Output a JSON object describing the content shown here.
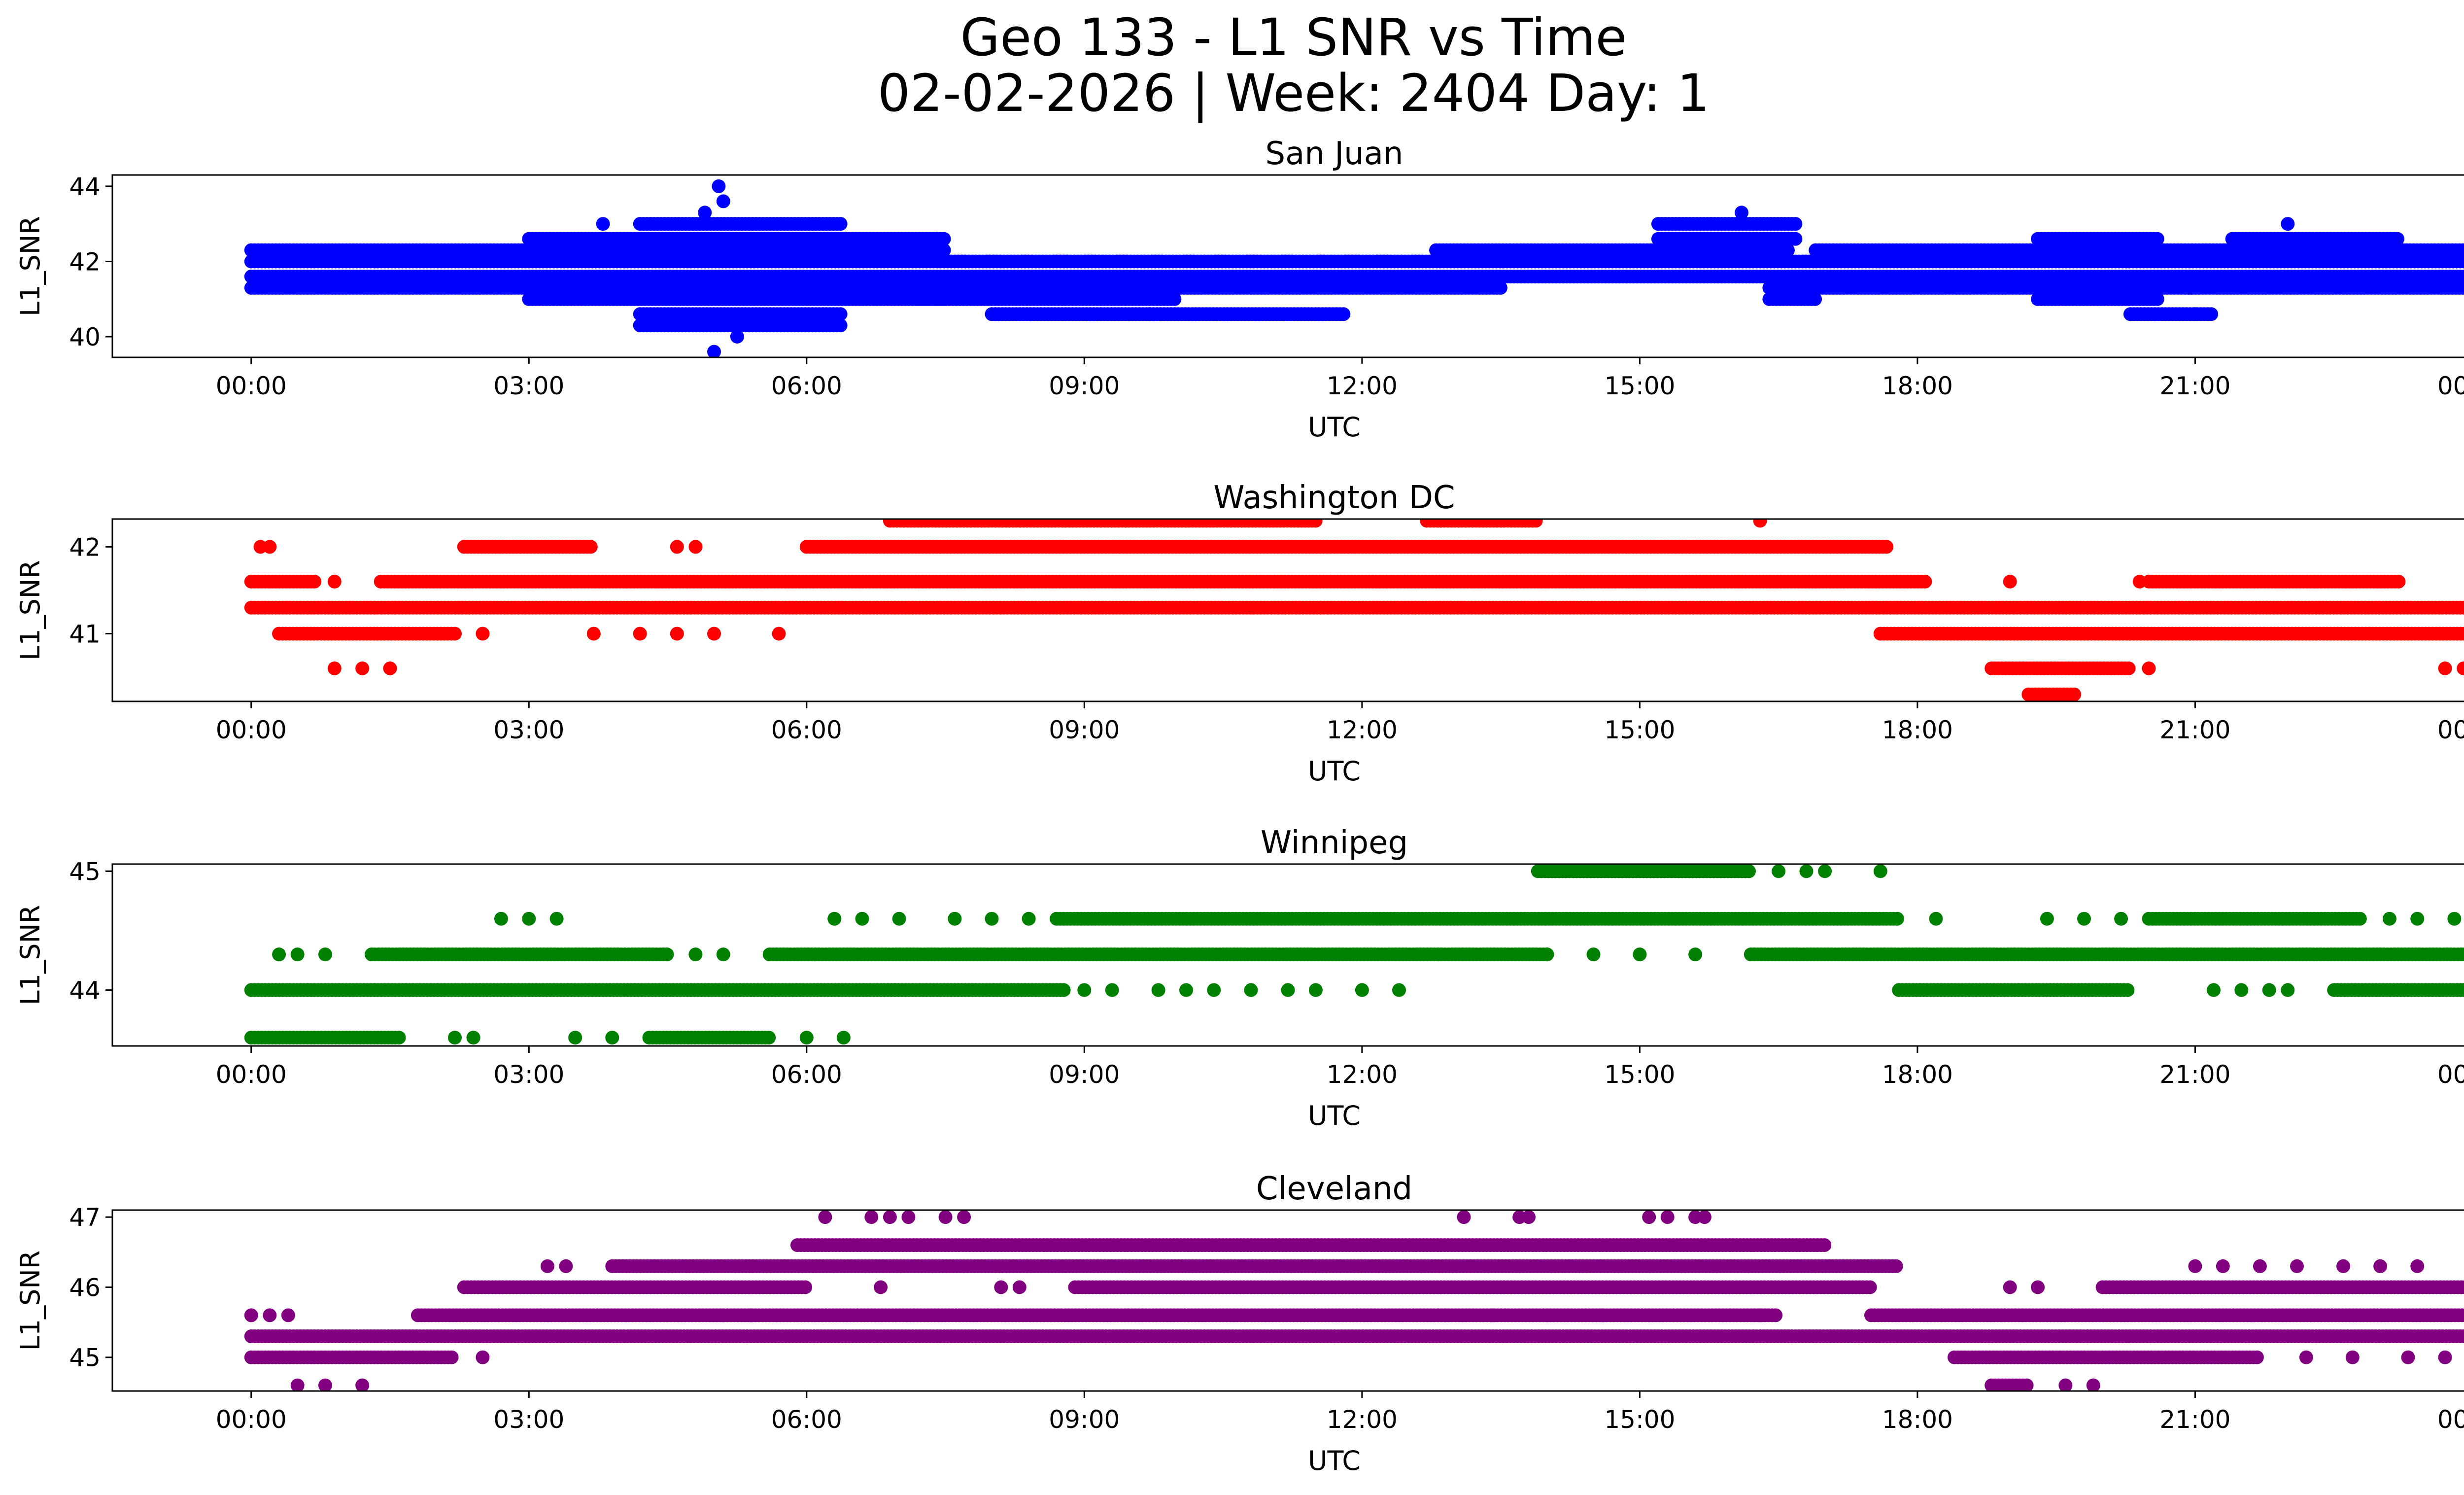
{
  "figure": {
    "title_line1": "Geo 133 - L1 SNR vs Time",
    "title_line2": "02-02-2026 | Week: 2404 Day: 1"
  },
  "chart_data": [
    {
      "type": "scatter",
      "title": "San Juan",
      "color": "#0000ff",
      "xlabel": "UTC",
      "ylabel": "L1_SNR",
      "xlim": [
        -1.5,
        24.9
      ],
      "ylim": [
        39.45,
        44.3
      ],
      "yticks": [
        40,
        42,
        44
      ],
      "ytick_labels": [
        "40",
        "42",
        "44"
      ],
      "xticks": [
        0,
        3,
        6,
        9,
        12,
        15,
        18,
        21,
        24
      ],
      "xtick_labels": [
        "00:00",
        "03:00",
        "06:00",
        "09:00",
        "12:00",
        "15:00",
        "18:00",
        "21:00",
        "00:00"
      ],
      "levels": [
        40.0,
        40.3,
        40.6,
        41.0,
        41.3,
        41.6,
        42.0,
        42.3,
        42.6,
        43.0,
        43.3,
        43.6,
        44.0
      ],
      "segments": [
        {
          "start": 0.0,
          "end": 24.0,
          "levels": [
            41.6,
            42.0
          ]
        },
        {
          "start": 0.0,
          "end": 3.8,
          "levels": [
            41.3,
            42.3
          ]
        },
        {
          "start": 3.0,
          "end": 7.5,
          "levels": [
            41.0,
            41.3,
            42.3,
            42.6
          ]
        },
        {
          "start": 4.2,
          "end": 6.4,
          "levels": [
            40.6,
            40.3,
            43.0
          ]
        },
        {
          "start": 7.2,
          "end": 10.0,
          "levels": [
            41.3,
            41.0
          ]
        },
        {
          "start": 8.0,
          "end": 11.8,
          "levels": [
            40.6
          ]
        },
        {
          "start": 10.0,
          "end": 13.5,
          "levels": [
            41.3
          ]
        },
        {
          "start": 12.8,
          "end": 16.6,
          "levels": [
            42.3
          ]
        },
        {
          "start": 15.2,
          "end": 16.7,
          "levels": [
            42.6,
            43.0
          ]
        },
        {
          "start": 16.4,
          "end": 16.9,
          "levels": [
            41.0,
            41.3
          ]
        },
        {
          "start": 16.9,
          "end": 24.0,
          "levels": [
            41.3,
            42.3
          ]
        },
        {
          "start": 19.3,
          "end": 20.6,
          "levels": [
            41.0,
            42.6
          ]
        },
        {
          "start": 20.3,
          "end": 21.2,
          "levels": [
            40.6
          ]
        },
        {
          "start": 21.4,
          "end": 23.2,
          "levels": [
            42.6
          ]
        }
      ],
      "points": [
        {
          "x": 5.05,
          "y": 44.0
        },
        {
          "x": 5.0,
          "y": 39.6
        },
        {
          "x": 5.25,
          "y": 40.0
        },
        {
          "x": 4.9,
          "y": 43.3
        },
        {
          "x": 5.1,
          "y": 43.6
        },
        {
          "x": 3.8,
          "y": 43.0
        },
        {
          "x": 16.1,
          "y": 43.3
        },
        {
          "x": 22.0,
          "y": 43.0
        },
        {
          "x": 9.7,
          "y": 40.6
        },
        {
          "x": 21.0,
          "y": 40.6
        }
      ]
    },
    {
      "type": "scatter",
      "title": "Washington DC",
      "color": "#ff0000",
      "xlabel": "UTC",
      "ylabel": "L1_SNR",
      "xlim": [
        -1.5,
        24.9
      ],
      "ylim": [
        40.22,
        42.32
      ],
      "yticks": [
        41,
        42
      ],
      "ytick_labels": [
        "41",
        "42"
      ],
      "xticks": [
        0,
        3,
        6,
        9,
        12,
        15,
        18,
        21,
        24
      ],
      "xtick_labels": [
        "00:00",
        "03:00",
        "06:00",
        "09:00",
        "12:00",
        "15:00",
        "18:00",
        "21:00",
        "00:00"
      ],
      "levels": [
        40.3,
        40.6,
        41.0,
        41.3,
        41.6,
        42.0,
        42.3
      ],
      "segments": [
        {
          "start": 0.0,
          "end": 24.0,
          "levels": [
            41.3
          ]
        },
        {
          "start": 0.0,
          "end": 0.7,
          "levels": [
            41.6
          ]
        },
        {
          "start": 1.4,
          "end": 18.1,
          "levels": [
            41.6
          ]
        },
        {
          "start": 0.3,
          "end": 2.2,
          "levels": [
            41.0
          ]
        },
        {
          "start": 2.3,
          "end": 3.7,
          "levels": [
            42.0
          ]
        },
        {
          "start": 6.0,
          "end": 17.7,
          "levels": [
            42.0
          ]
        },
        {
          "start": 6.9,
          "end": 11.5,
          "levels": [
            42.3
          ]
        },
        {
          "start": 12.7,
          "end": 13.9,
          "levels": [
            42.3
          ]
        },
        {
          "start": 17.6,
          "end": 24.0,
          "levels": [
            41.0
          ]
        },
        {
          "start": 20.5,
          "end": 23.2,
          "levels": [
            41.6
          ]
        },
        {
          "start": 18.8,
          "end": 20.3,
          "levels": [
            40.6
          ]
        },
        {
          "start": 19.2,
          "end": 19.7,
          "levels": [
            40.3
          ]
        }
      ],
      "points": [
        {
          "x": 0.1,
          "y": 42.0
        },
        {
          "x": 0.2,
          "y": 42.0
        },
        {
          "x": 0.9,
          "y": 41.6
        },
        {
          "x": 0.9,
          "y": 40.6
        },
        {
          "x": 1.2,
          "y": 40.6
        },
        {
          "x": 1.5,
          "y": 40.6
        },
        {
          "x": 2.5,
          "y": 41.0
        },
        {
          "x": 3.7,
          "y": 41.0
        },
        {
          "x": 4.2,
          "y": 41.0
        },
        {
          "x": 4.6,
          "y": 41.0
        },
        {
          "x": 5.0,
          "y": 41.0
        },
        {
          "x": 5.7,
          "y": 41.0
        },
        {
          "x": 4.6,
          "y": 42.0
        },
        {
          "x": 4.8,
          "y": 42.0
        },
        {
          "x": 16.3,
          "y": 42.3
        },
        {
          "x": 19.0,
          "y": 41.6
        },
        {
          "x": 20.4,
          "y": 41.6
        },
        {
          "x": 20.5,
          "y": 40.6
        },
        {
          "x": 23.7,
          "y": 40.6
        },
        {
          "x": 23.9,
          "y": 40.6
        }
      ]
    },
    {
      "type": "scatter",
      "title": "Winnipeg",
      "color": "#008000",
      "xlabel": "UTC",
      "ylabel": "L1_SNR",
      "xlim": [
        -1.5,
        24.9
      ],
      "ylim": [
        43.53,
        45.06
      ],
      "yticks": [
        44,
        45
      ],
      "ytick_labels": [
        "44",
        "45"
      ],
      "xticks": [
        0,
        3,
        6,
        9,
        12,
        15,
        18,
        21,
        24
      ],
      "xtick_labels": [
        "00:00",
        "03:00",
        "06:00",
        "09:00",
        "12:00",
        "15:00",
        "18:00",
        "21:00",
        "00:00"
      ],
      "levels": [
        43.6,
        44.0,
        44.3,
        44.6,
        45.0
      ],
      "segments": [
        {
          "start": 0.0,
          "end": 8.8,
          "levels": [
            44.0
          ]
        },
        {
          "start": 0.0,
          "end": 1.6,
          "levels": [
            43.6
          ]
        },
        {
          "start": 4.3,
          "end": 5.6,
          "levels": [
            43.6
          ]
        },
        {
          "start": 1.3,
          "end": 4.5,
          "levels": [
            44.3
          ]
        },
        {
          "start": 5.6,
          "end": 14.0,
          "levels": [
            44.3
          ]
        },
        {
          "start": 16.2,
          "end": 24.0,
          "levels": [
            44.3
          ]
        },
        {
          "start": 8.7,
          "end": 17.8,
          "levels": [
            44.6
          ]
        },
        {
          "start": 20.5,
          "end": 22.8,
          "levels": [
            44.6
          ]
        },
        {
          "start": 13.9,
          "end": 16.2,
          "levels": [
            45.0
          ]
        },
        {
          "start": 17.8,
          "end": 20.3,
          "levels": [
            44.0
          ]
        },
        {
          "start": 22.5,
          "end": 24.0,
          "levels": [
            44.0
          ]
        }
      ],
      "points": [
        {
          "x": 0.3,
          "y": 44.3
        },
        {
          "x": 0.5,
          "y": 44.3
        },
        {
          "x": 0.8,
          "y": 44.3
        },
        {
          "x": 2.7,
          "y": 44.6
        },
        {
          "x": 3.0,
          "y": 44.6
        },
        {
          "x": 3.3,
          "y": 44.6
        },
        {
          "x": 2.2,
          "y": 43.6
        },
        {
          "x": 2.4,
          "y": 43.6
        },
        {
          "x": 3.5,
          "y": 43.6
        },
        {
          "x": 3.9,
          "y": 43.6
        },
        {
          "x": 6.0,
          "y": 43.6
        },
        {
          "x": 6.4,
          "y": 43.6
        },
        {
          "x": 4.8,
          "y": 44.3
        },
        {
          "x": 5.1,
          "y": 44.3
        },
        {
          "x": 6.3,
          "y": 44.6
        },
        {
          "x": 6.6,
          "y": 44.6
        },
        {
          "x": 7.0,
          "y": 44.6
        },
        {
          "x": 7.6,
          "y": 44.6
        },
        {
          "x": 8.0,
          "y": 44.6
        },
        {
          "x": 8.4,
          "y": 44.6
        },
        {
          "x": 9.0,
          "y": 44.0
        },
        {
          "x": 9.3,
          "y": 44.0
        },
        {
          "x": 9.8,
          "y": 44.0
        },
        {
          "x": 10.1,
          "y": 44.0
        },
        {
          "x": 10.4,
          "y": 44.0
        },
        {
          "x": 10.8,
          "y": 44.0
        },
        {
          "x": 11.2,
          "y": 44.0
        },
        {
          "x": 11.5,
          "y": 44.0
        },
        {
          "x": 12.0,
          "y": 44.0
        },
        {
          "x": 12.4,
          "y": 44.0
        },
        {
          "x": 14.0,
          "y": 44.3
        },
        {
          "x": 14.5,
          "y": 44.3
        },
        {
          "x": 15.0,
          "y": 44.3
        },
        {
          "x": 15.6,
          "y": 44.3
        },
        {
          "x": 16.5,
          "y": 45.0
        },
        {
          "x": 16.8,
          "y": 45.0
        },
        {
          "x": 17.0,
          "y": 45.0
        },
        {
          "x": 17.6,
          "y": 45.0
        },
        {
          "x": 18.2,
          "y": 44.6
        },
        {
          "x": 19.4,
          "y": 44.6
        },
        {
          "x": 19.8,
          "y": 44.6
        },
        {
          "x": 20.2,
          "y": 44.6
        },
        {
          "x": 21.2,
          "y": 44.0
        },
        {
          "x": 21.5,
          "y": 44.0
        },
        {
          "x": 21.8,
          "y": 44.0
        },
        {
          "x": 22.0,
          "y": 44.0
        },
        {
          "x": 23.1,
          "y": 44.6
        },
        {
          "x": 23.4,
          "y": 44.6
        },
        {
          "x": 23.8,
          "y": 44.6
        }
      ]
    },
    {
      "type": "scatter",
      "title": "Cleveland",
      "color": "#800080",
      "xlabel": "UTC",
      "ylabel": "L1_SNR",
      "xlim": [
        -1.5,
        24.9
      ],
      "ylim": [
        44.52,
        47.1
      ],
      "yticks": [
        45,
        46,
        47
      ],
      "ytick_labels": [
        "45",
        "46",
        "47"
      ],
      "xticks": [
        0,
        3,
        6,
        9,
        12,
        15,
        18,
        21,
        24
      ],
      "xtick_labels": [
        "00:00",
        "03:00",
        "06:00",
        "09:00",
        "12:00",
        "15:00",
        "18:00",
        "21:00",
        "00:00"
      ],
      "levels": [
        44.6,
        45.0,
        45.3,
        45.6,
        46.0,
        46.3,
        46.6,
        47.0
      ],
      "segments": [
        {
          "start": 0.0,
          "end": 24.0,
          "levels": [
            45.3
          ]
        },
        {
          "start": 0.0,
          "end": 2.2,
          "levels": [
            45.0
          ]
        },
        {
          "start": 1.8,
          "end": 16.5,
          "levels": [
            45.6
          ]
        },
        {
          "start": 17.5,
          "end": 24.0,
          "levels": [
            45.6
          ]
        },
        {
          "start": 2.3,
          "end": 6.0,
          "levels": [
            46.0
          ]
        },
        {
          "start": 8.9,
          "end": 17.5,
          "levels": [
            46.0
          ]
        },
        {
          "start": 20.0,
          "end": 24.0,
          "levels": [
            46.0
          ]
        },
        {
          "start": 3.9,
          "end": 17.8,
          "levels": [
            46.3
          ]
        },
        {
          "start": 5.9,
          "end": 17.0,
          "levels": [
            46.6
          ]
        },
        {
          "start": 18.4,
          "end": 21.7,
          "levels": [
            45.0
          ]
        },
        {
          "start": 18.8,
          "end": 19.2,
          "levels": [
            44.6
          ]
        }
      ],
      "points": [
        {
          "x": 0.0,
          "y": 45.6
        },
        {
          "x": 0.2,
          "y": 45.6
        },
        {
          "x": 0.4,
          "y": 45.6
        },
        {
          "x": 0.5,
          "y": 44.6
        },
        {
          "x": 0.8,
          "y": 44.6
        },
        {
          "x": 1.2,
          "y": 44.6
        },
        {
          "x": 2.5,
          "y": 45.0
        },
        {
          "x": 3.2,
          "y": 46.3
        },
        {
          "x": 3.4,
          "y": 46.3
        },
        {
          "x": 5.1,
          "y": 45.6
        },
        {
          "x": 5.4,
          "y": 45.6
        },
        {
          "x": 6.2,
          "y": 47.0
        },
        {
          "x": 6.7,
          "y": 47.0
        },
        {
          "x": 6.9,
          "y": 47.0
        },
        {
          "x": 7.1,
          "y": 47.0
        },
        {
          "x": 7.5,
          "y": 47.0
        },
        {
          "x": 7.7,
          "y": 47.0
        },
        {
          "x": 6.8,
          "y": 46.0
        },
        {
          "x": 8.1,
          "y": 46.0
        },
        {
          "x": 8.3,
          "y": 46.0
        },
        {
          "x": 13.1,
          "y": 47.0
        },
        {
          "x": 13.7,
          "y": 47.0
        },
        {
          "x": 13.8,
          "y": 47.0
        },
        {
          "x": 15.1,
          "y": 47.0
        },
        {
          "x": 15.3,
          "y": 47.0
        },
        {
          "x": 15.6,
          "y": 47.0
        },
        {
          "x": 15.7,
          "y": 47.0
        },
        {
          "x": 12.9,
          "y": 45.6
        },
        {
          "x": 13.4,
          "y": 45.6
        },
        {
          "x": 14.0,
          "y": 45.6
        },
        {
          "x": 14.6,
          "y": 45.6
        },
        {
          "x": 15.1,
          "y": 45.6
        },
        {
          "x": 16.3,
          "y": 45.6
        },
        {
          "x": 19.0,
          "y": 46.0
        },
        {
          "x": 19.3,
          "y": 46.0
        },
        {
          "x": 19.6,
          "y": 44.6
        },
        {
          "x": 19.9,
          "y": 44.6
        },
        {
          "x": 21.0,
          "y": 46.3
        },
        {
          "x": 21.3,
          "y": 46.3
        },
        {
          "x": 21.7,
          "y": 46.3
        },
        {
          "x": 22.1,
          "y": 46.3
        },
        {
          "x": 22.6,
          "y": 46.3
        },
        {
          "x": 23.0,
          "y": 46.3
        },
        {
          "x": 23.4,
          "y": 46.3
        },
        {
          "x": 22.2,
          "y": 45.0
        },
        {
          "x": 22.7,
          "y": 45.0
        },
        {
          "x": 23.3,
          "y": 45.0
        },
        {
          "x": 23.7,
          "y": 45.0
        }
      ]
    }
  ]
}
